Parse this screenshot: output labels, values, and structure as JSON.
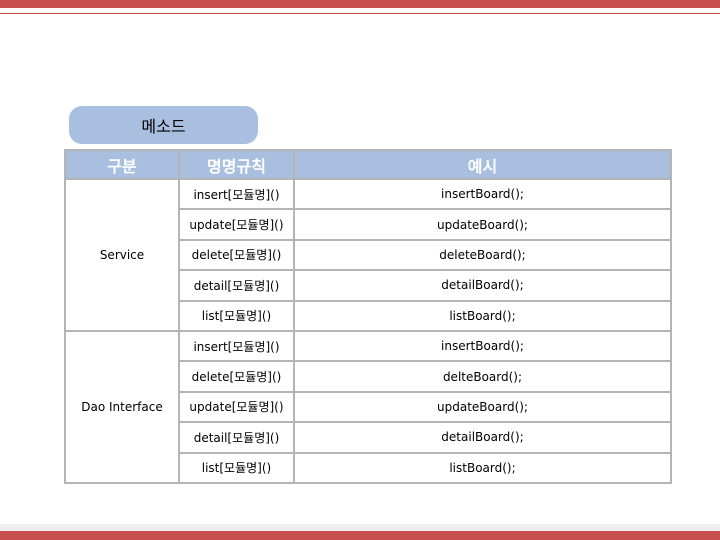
{
  "section_title": "메소드",
  "table": {
    "headers": [
      "구분",
      "명명규칙",
      "예시"
    ],
    "groups": [
      {
        "category": "Service",
        "rows": [
          {
            "rule": "insert[모듈명]()",
            "example": "insertBoard();"
          },
          {
            "rule": "update[모듈명]()",
            "example": "updateBoard();"
          },
          {
            "rule": "delete[모듈명]()",
            "example": "deleteBoard();"
          },
          {
            "rule": "detail[모듈명]()",
            "example": "detailBoard();"
          },
          {
            "rule": "list[모듈명]()",
            "example": "listBoard();"
          }
        ]
      },
      {
        "category": "Dao Interface",
        "rows": [
          {
            "rule": "insert[모듈명]()",
            "example": "insertBoard();"
          },
          {
            "rule": "delete[모듈명]()",
            "example": "delteBoard();"
          },
          {
            "rule": "update[모듈명]()",
            "example": "updateBoard();"
          },
          {
            "rule": "detail[모듈명]()",
            "example": "detailBoard();"
          },
          {
            "rule": "list[모듈명]()",
            "example": "listBoard();"
          }
        ]
      }
    ]
  }
}
